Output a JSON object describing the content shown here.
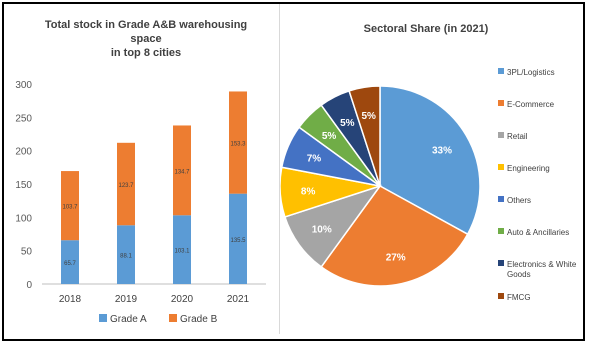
{
  "chart_data": [
    {
      "type": "bar",
      "stacked": true,
      "title_lines": [
        "Total stock in Grade A&B warehousing",
        "space",
        "in top 8 cities"
      ],
      "categories": [
        "2018",
        "2019",
        "2020",
        "2021"
      ],
      "series": [
        {
          "name": "Grade A",
          "values": [
            65.7,
            88.1,
            103.1,
            135.5
          ],
          "labels": [
            "65.7",
            "88.1",
            "103.1",
            "135.5"
          ]
        },
        {
          "name": "Grade B",
          "values": [
            103.7,
            123.7,
            134.7,
            153.3
          ],
          "labels": [
            "103.7",
            "123.7",
            "134.7",
            "153.3"
          ]
        }
      ],
      "ylim": [
        0,
        300
      ],
      "yticks": [
        "0",
        "50",
        "100",
        "150",
        "200",
        "250",
        "300"
      ],
      "colors": {
        "Grade A": "#5b9bd5",
        "Grade B": "#ed7d31"
      },
      "legend_position": "bottom",
      "grid": false
    },
    {
      "type": "pie",
      "title": "Sectoral Share (in 2021)",
      "slices": [
        {
          "name": "3PL/Logistics",
          "value": 33,
          "label": "33%",
          "color": "#5b9bd5"
        },
        {
          "name": "E-Commerce",
          "value": 27,
          "label": "27%",
          "color": "#ed7d31"
        },
        {
          "name": "Retail",
          "value": 10,
          "label": "10%",
          "color": "#a5a5a5"
        },
        {
          "name": "Engineering",
          "value": 8,
          "label": "8%",
          "color": "#ffc000"
        },
        {
          "name": "Others",
          "value": 7,
          "label": "7%",
          "color": "#4472c4"
        },
        {
          "name": "Auto & Ancillaries",
          "value": 5,
          "label": "5%",
          "color": "#70ad47"
        },
        {
          "name": "Electronics & White Goods",
          "value": 5,
          "label": "5%",
          "color": "#264478"
        },
        {
          "name": "FMCG",
          "value": 5,
          "label": "5%",
          "color": "#9e480e"
        }
      ],
      "legend_position": "right"
    }
  ]
}
